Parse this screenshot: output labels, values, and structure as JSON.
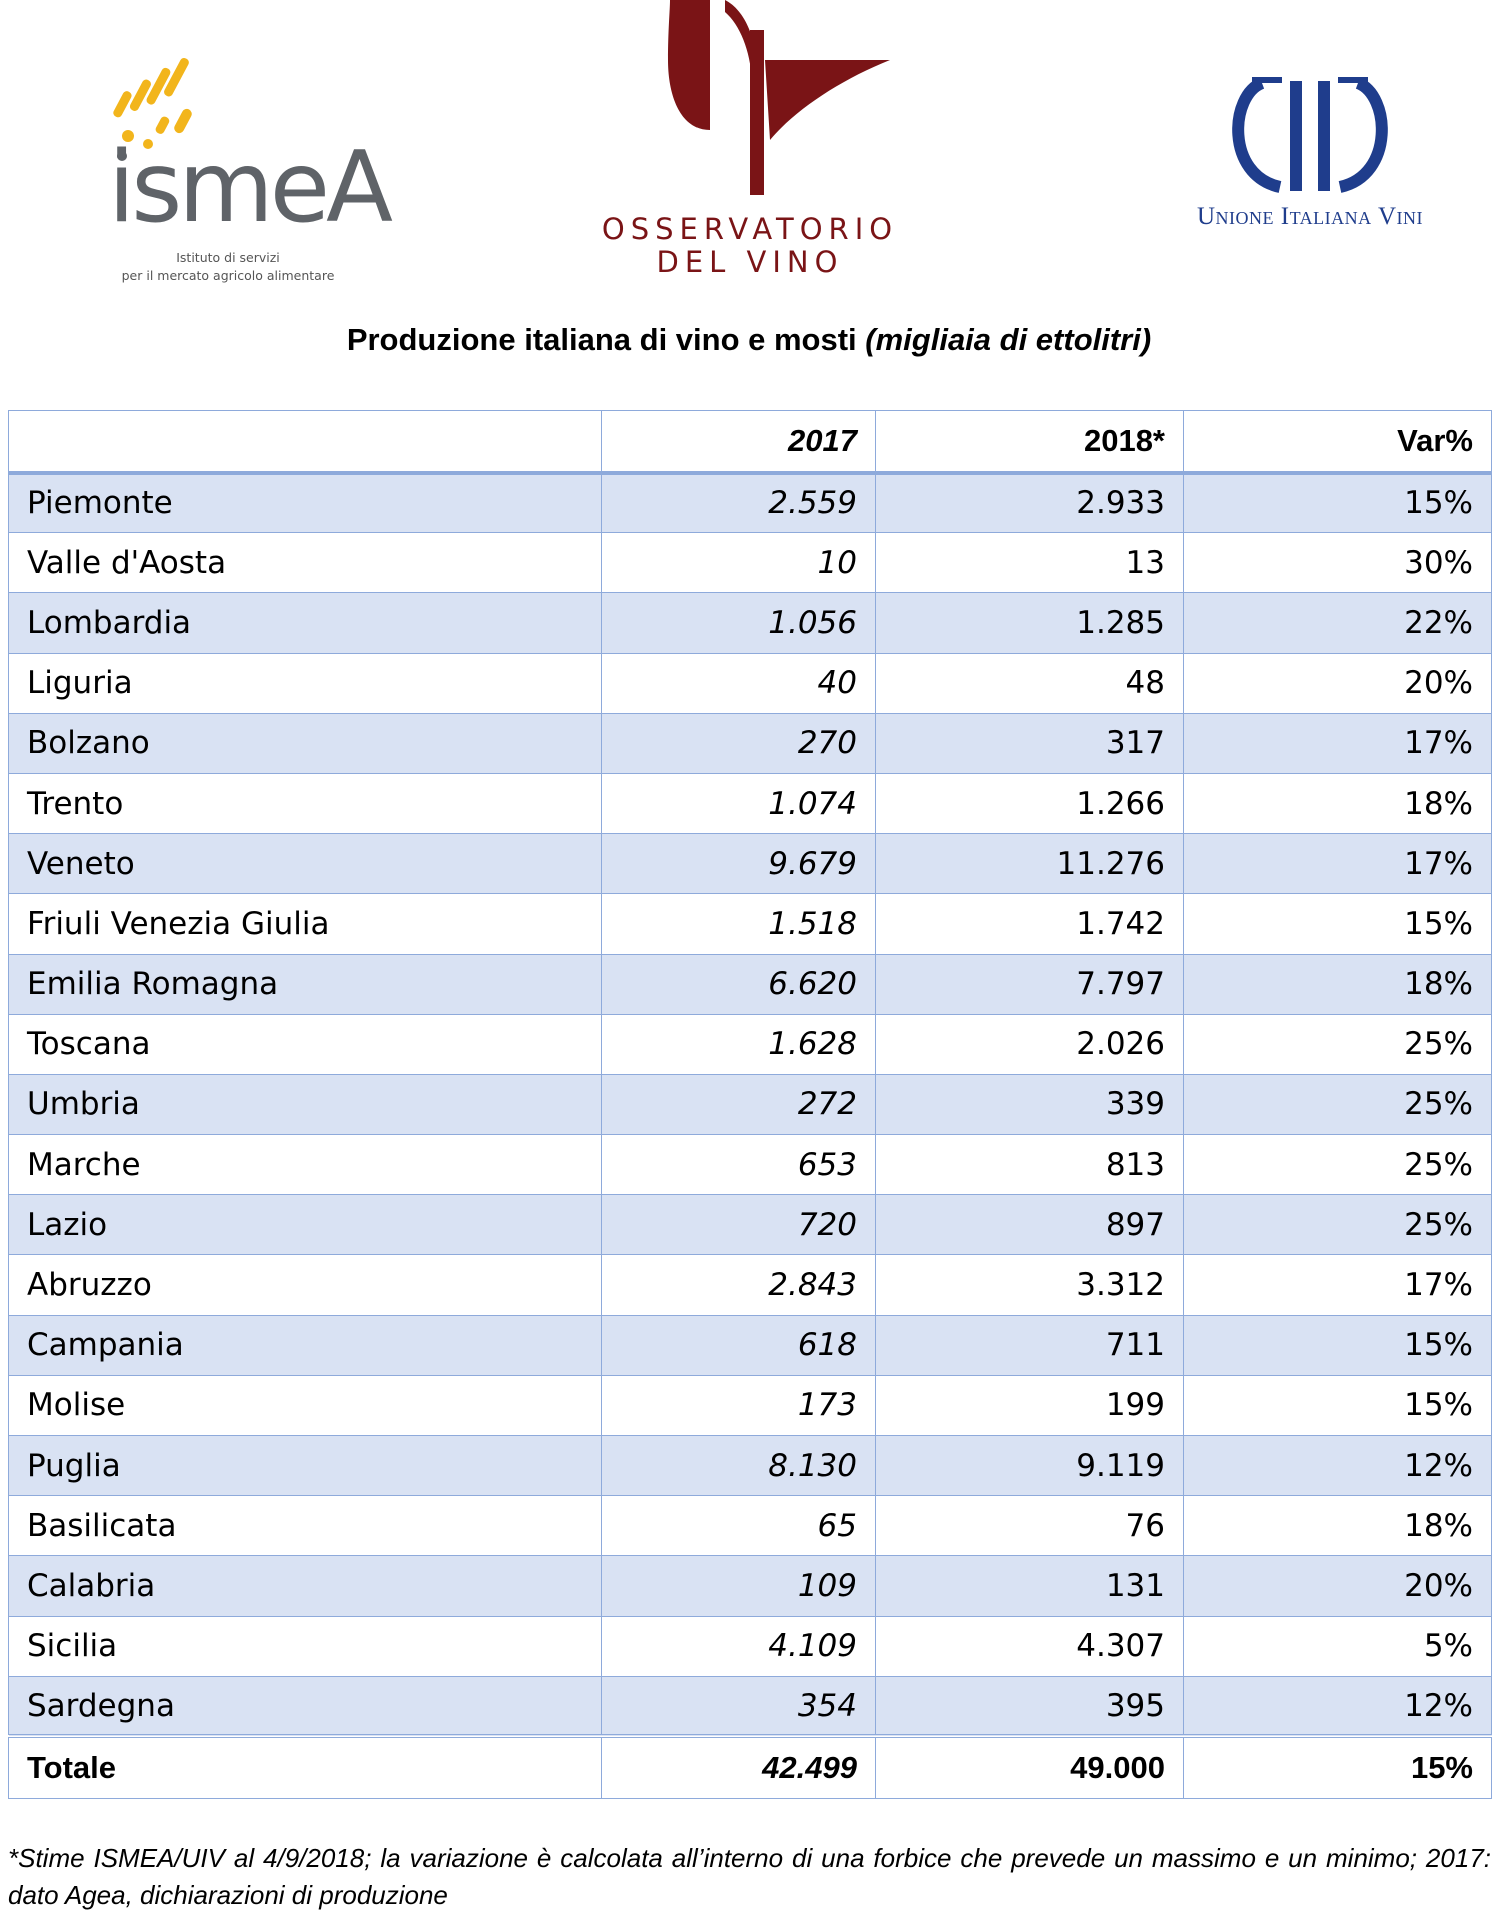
{
  "logos": {
    "ismea": {
      "word": "ismeA",
      "subtitle_line1": "Istituto di servizi",
      "subtitle_line2": "per il mercato agricolo alimentare",
      "color_text": "#5f6368",
      "color_accent": "#f2b51c"
    },
    "osservatorio": {
      "line1": "OSSERVATORIO",
      "line2": "DEL VINO",
      "color": "#7a1416"
    },
    "uiv": {
      "name": "Unione Italiana Vini",
      "color": "#1f3d8c"
    }
  },
  "title": {
    "main": "Produzione italiana di vino e mosti ",
    "unit": "(migliaia di ettolitri)"
  },
  "table": {
    "headers": [
      "",
      "2017",
      "2018*",
      "Var%"
    ],
    "rows": [
      {
        "region": "Piemonte",
        "y2017": "2.559",
        "y2018": "2.933",
        "var": "15%"
      },
      {
        "region": "Valle d'Aosta",
        "y2017": "10",
        "y2018": "13",
        "var": "30%"
      },
      {
        "region": "Lombardia",
        "y2017": "1.056",
        "y2018": "1.285",
        "var": "22%"
      },
      {
        "region": "Liguria",
        "y2017": "40",
        "y2018": "48",
        "var": "20%"
      },
      {
        "region": "Bolzano",
        "y2017": "270",
        "y2018": "317",
        "var": "17%"
      },
      {
        "region": "Trento",
        "y2017": "1.074",
        "y2018": "1.266",
        "var": "18%"
      },
      {
        "region": "Veneto",
        "y2017": "9.679",
        "y2018": "11.276",
        "var": "17%"
      },
      {
        "region": "Friuli Venezia Giulia",
        "y2017": "1.518",
        "y2018": "1.742",
        "var": "15%"
      },
      {
        "region": "Emilia Romagna",
        "y2017": "6.620",
        "y2018": "7.797",
        "var": "18%"
      },
      {
        "region": "Toscana",
        "y2017": "1.628",
        "y2018": "2.026",
        "var": "25%"
      },
      {
        "region": "Umbria",
        "y2017": "272",
        "y2018": "339",
        "var": "25%"
      },
      {
        "region": "Marche",
        "y2017": "653",
        "y2018": "813",
        "var": "25%"
      },
      {
        "region": "Lazio",
        "y2017": "720",
        "y2018": "897",
        "var": "25%"
      },
      {
        "region": "Abruzzo",
        "y2017": "2.843",
        "y2018": "3.312",
        "var": "17%"
      },
      {
        "region": "Campania",
        "y2017": "618",
        "y2018": "711",
        "var": "15%"
      },
      {
        "region": "Molise",
        "y2017": "173",
        "y2018": "199",
        "var": "15%"
      },
      {
        "region": "Puglia",
        "y2017": "8.130",
        "y2018": "9.119",
        "var": "12%"
      },
      {
        "region": "Basilicata",
        "y2017": "65",
        "y2018": "76",
        "var": "18%"
      },
      {
        "region": "Calabria",
        "y2017": "109",
        "y2018": "131",
        "var": "20%"
      },
      {
        "region": "Sicilia",
        "y2017": "4.109",
        "y2018": "4.307",
        "var": "5%"
      },
      {
        "region": "Sardegna",
        "y2017": "354",
        "y2018": "395",
        "var": "12%"
      }
    ],
    "total": {
      "region": "Totale",
      "y2017": "42.499",
      "y2018": "49.000",
      "var": "15%"
    },
    "colors": {
      "band": "#d9e2f3",
      "border": "#8eaadb"
    }
  },
  "footnote": "*Stime ISMEA/UIV al 4/9/2018; la variazione è calcolata all’interno di una forbice che prevede un massimo e un minimo; 2017: dato Agea, dichiarazioni di produzione"
}
